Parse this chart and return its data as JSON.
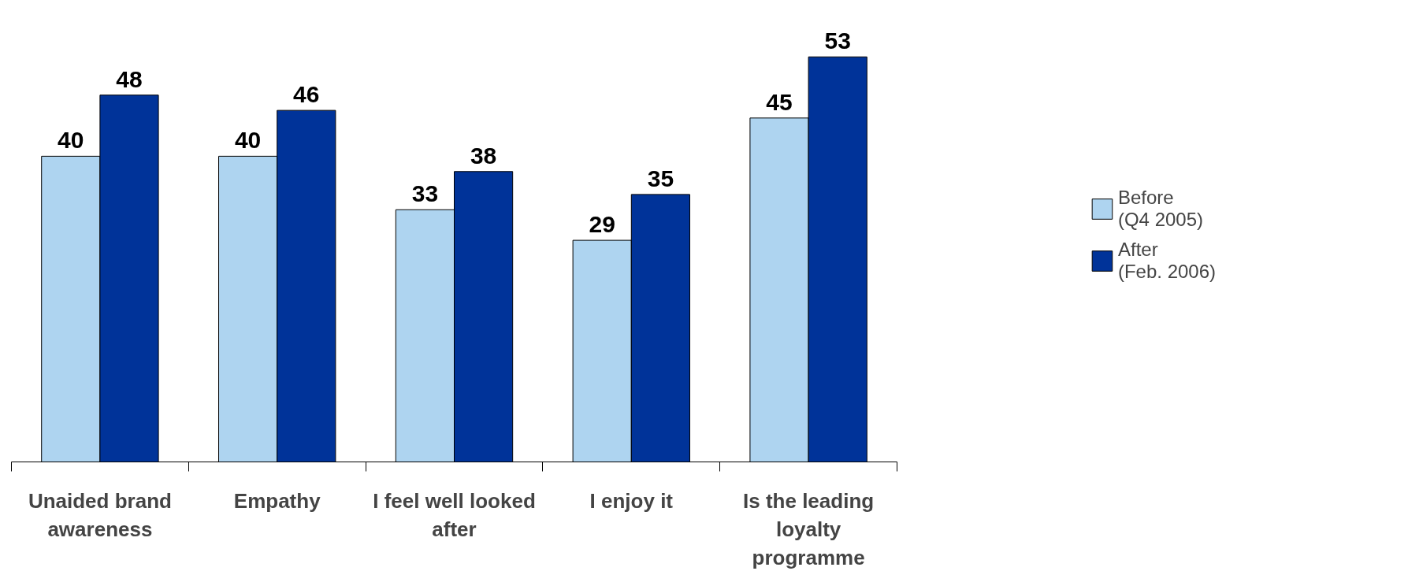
{
  "chart_data": {
    "type": "bar",
    "categories": [
      "Unaided brand\nawareness",
      "Empathy",
      "I feel well looked\nafter",
      "I enjoy it",
      "Is the leading\nloyalty\nprogramme"
    ],
    "series": [
      {
        "name": "Before\n(Q4 2005)",
        "color": "#aed4f0",
        "values": [
          40,
          40,
          33,
          29,
          45
        ]
      },
      {
        "name": "After\n(Feb. 2006)",
        "color": "#003399",
        "values": [
          48,
          46,
          38,
          35,
          53
        ]
      }
    ],
    "data_labels": true,
    "legend": "right",
    "grid": false
  }
}
